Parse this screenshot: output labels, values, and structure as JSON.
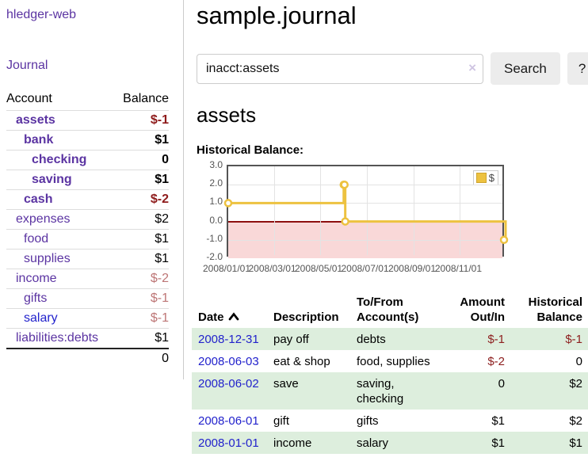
{
  "sidebar": {
    "brand": "hledger-web",
    "journal_link": "Journal",
    "accounts": {
      "header": {
        "account": "Account",
        "balance": "Balance"
      },
      "rows": [
        {
          "name": "assets",
          "balance": "$-1"
        },
        {
          "name": "bank",
          "balance": "$1"
        },
        {
          "name": "checking",
          "balance": "0"
        },
        {
          "name": "saving",
          "balance": "$1"
        },
        {
          "name": "cash",
          "balance": "$-2"
        },
        {
          "name": "expenses",
          "balance": "$2"
        },
        {
          "name": "food",
          "balance": "$1"
        },
        {
          "name": "supplies",
          "balance": "$1"
        },
        {
          "name": "income",
          "balance": "$-2"
        },
        {
          "name": "gifts",
          "balance": "$-1"
        },
        {
          "name": "salary",
          "balance": "$-1"
        },
        {
          "name": "liabilities:debts",
          "balance": "$1"
        }
      ],
      "total": "0"
    }
  },
  "main": {
    "title": "sample.journal",
    "search": {
      "value": "inacct:assets",
      "clear_icon": "×",
      "search_button": "Search",
      "help_button": "?"
    },
    "account_heading": "assets",
    "section_label": "Historical Balance:"
  },
  "colors": {
    "link_purple": "#5b34a2",
    "link_blue": "#2222cc",
    "negative_strong": "#8e1b1b",
    "negative_soft": "#bd7575",
    "row_green": "#ddeedd",
    "series_gold": "#edc240",
    "below_zero_pink": "#f9d8d8",
    "zero_line": "#8d0f0f"
  },
  "chart_data": {
    "type": "line",
    "step": true,
    "title": "Historical Balance",
    "xlim": [
      "2008/01/01",
      "2008/12/31"
    ],
    "ylim": [
      -2,
      3
    ],
    "yticks": [
      {
        "label": "3.0",
        "value": 3
      },
      {
        "label": "2.0",
        "value": 2
      },
      {
        "label": "1.0",
        "value": 1
      },
      {
        "label": "0.0",
        "value": 0
      },
      {
        "label": "-1.0",
        "value": -1
      },
      {
        "label": "-2.0",
        "value": -2
      }
    ],
    "xticks": [
      {
        "label": "2008/01/01",
        "date": "2008/01/01"
      },
      {
        "label": "2008/03/01",
        "date": "2008/03/01"
      },
      {
        "label": "2008/05/01",
        "date": "2008/05/01"
      },
      {
        "label": "2008/07/01",
        "date": "2008/07/01"
      },
      {
        "label": "2008/09/01",
        "date": "2008/09/01"
      },
      {
        "label": "2008/11/01",
        "date": "2008/11/01"
      }
    ],
    "legend": [
      {
        "label": "$",
        "color": "#edc240"
      }
    ],
    "legend_position": "top-right",
    "grid": true,
    "series": [
      {
        "name": "$",
        "color": "#edc240",
        "points": [
          {
            "date": "2008/01/01",
            "value": 1
          },
          {
            "date": "2008/06/01",
            "value": 2
          },
          {
            "date": "2008/06/02",
            "value": 2
          },
          {
            "date": "2008/06/03",
            "value": 0
          },
          {
            "date": "2008/12/31",
            "value": -1
          }
        ]
      }
    ]
  },
  "register": {
    "headers": {
      "date": "Date",
      "description": "Description",
      "accounts": "To/From Account(s)",
      "amount": "Amount Out/In",
      "balance": "Historical Balance"
    },
    "rows": [
      {
        "date": "2008-12-31",
        "description": "pay off",
        "accounts": "debts",
        "amount": "$-1",
        "balance": "$-1"
      },
      {
        "date": "2008-06-03",
        "description": "eat & shop",
        "accounts": "food, supplies",
        "amount": "$-2",
        "balance": "0"
      },
      {
        "date": "2008-06-02",
        "description": "save",
        "accounts": "saving, checking",
        "amount": "0",
        "balance": "$2"
      },
      {
        "date": "2008-06-01",
        "description": "gift",
        "accounts": "gifts",
        "amount": "$1",
        "balance": "$2"
      },
      {
        "date": "2008-01-01",
        "description": "income",
        "accounts": "salary",
        "amount": "$1",
        "balance": "$1"
      }
    ]
  }
}
